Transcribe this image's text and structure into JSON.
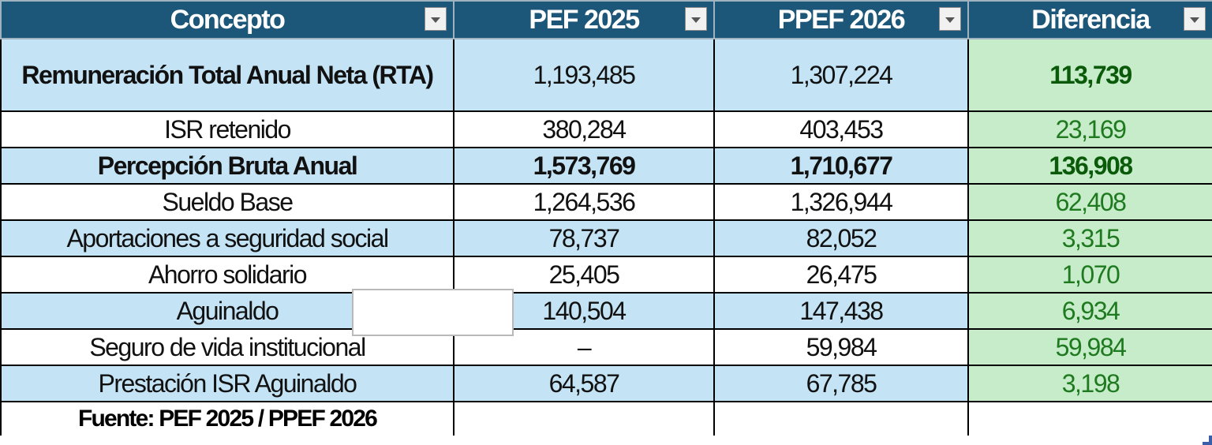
{
  "table": {
    "headers": [
      "Concepto",
      "PEF 2025",
      "PPEF 2026",
      "Diferencia"
    ],
    "rows": [
      {
        "concepto": "Remuneración Total Anual Neta (RTA)",
        "pef2025": "1,193,485",
        "ppef2026": "1,307,224",
        "diferencia": "113,739"
      },
      {
        "concepto": "ISR retenido",
        "pef2025": "380,284",
        "ppef2026": "403,453",
        "diferencia": "23,169"
      },
      {
        "concepto": "Percepción Bruta Anual",
        "pef2025": "1,573,769",
        "ppef2026": "1,710,677",
        "diferencia": "136,908"
      },
      {
        "concepto": "Sueldo Base",
        "pef2025": "1,264,536",
        "ppef2026": "1,326,944",
        "diferencia": "62,408"
      },
      {
        "concepto": "Aportaciones a seguridad social",
        "pef2025": "78,737",
        "ppef2026": "82,052",
        "diferencia": "3,315"
      },
      {
        "concepto": "Ahorro solidario",
        "pef2025": "25,405",
        "ppef2026": "26,475",
        "diferencia": "1,070"
      },
      {
        "concepto": "Aguinaldo",
        "pef2025": "140,504",
        "ppef2026": "147,438",
        "diferencia": "6,934"
      },
      {
        "concepto": "Seguro de vida institucional",
        "pef2025": "–",
        "ppef2026": "59,984",
        "diferencia": "59,984"
      },
      {
        "concepto": "Prestación ISR Aguinaldo",
        "pef2025": "64,587",
        "ppef2026": "67,785",
        "diferencia": "3,198"
      }
    ],
    "source": "Fuente: PEF 2025 / PPEF 2026"
  },
  "colors": {
    "header_bg": "#1c5678",
    "row_blue": "#c4e3f4",
    "diff_bg": "#c6ecca",
    "diff_text": "#1f7a1f"
  },
  "icons": {
    "filter": "dropdown-filter-icon"
  }
}
